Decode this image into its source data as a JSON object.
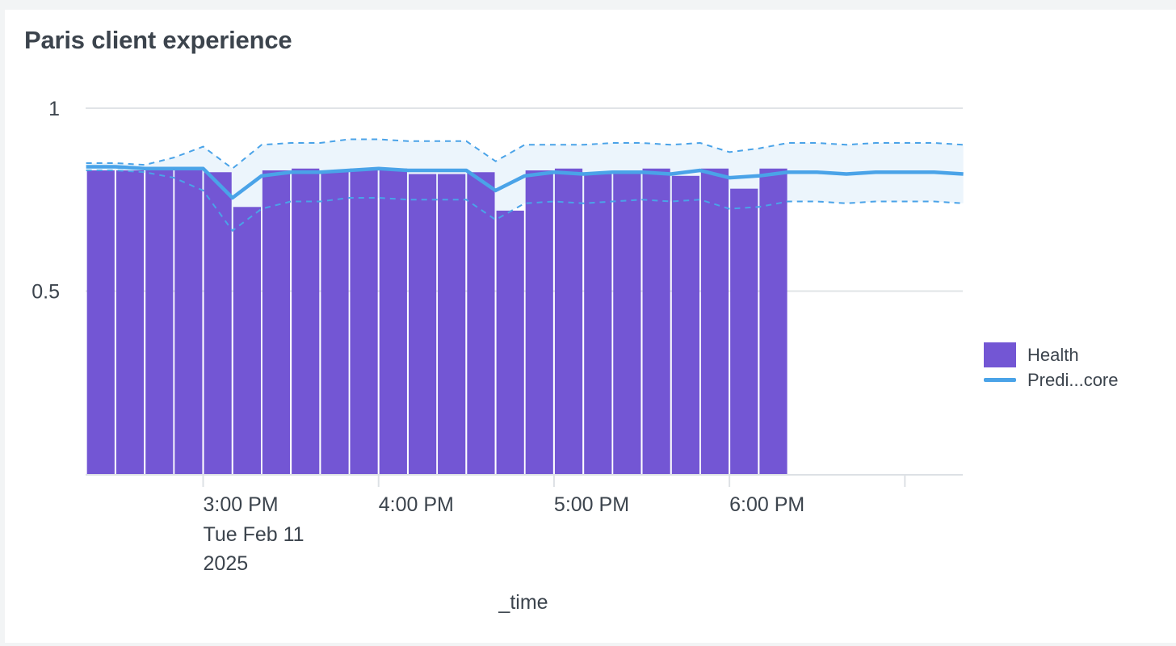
{
  "panel": {
    "title": "Paris client experience"
  },
  "legend": {
    "items": [
      {
        "label": "Health",
        "kind": "bar",
        "color": "#7356d4"
      },
      {
        "label": "Predi...core",
        "kind": "line",
        "color": "#4aa3e8"
      }
    ]
  },
  "chart_data": {
    "type": "bar",
    "title": "Paris client experience",
    "xlabel": "_time",
    "ylabel": "",
    "ylim": [
      0,
      1
    ],
    "y_ticks": [
      {
        "value": 1,
        "label": "1"
      },
      {
        "value": 0.5,
        "label": "0.5"
      }
    ],
    "x_ticks": [
      {
        "hour": 15,
        "label": "3:00 PM",
        "sublabel": [
          "Tue Feb 11",
          "2025"
        ]
      },
      {
        "hour": 16,
        "label": "4:00 PM",
        "sublabel": []
      },
      {
        "hour": 17,
        "label": "5:00 PM",
        "sublabel": []
      },
      {
        "hour": 18,
        "label": "6:00 PM",
        "sublabel": []
      },
      {
        "hour": 19,
        "label": "",
        "sublabel": []
      }
    ],
    "x_range_hours": [
      14.33,
      19.33
    ],
    "grid": true,
    "legend_position": "right",
    "bar_width_hours": 0.1667,
    "series": [
      {
        "name": "Health",
        "type": "bar",
        "color": "#7356d4",
        "x_hours": [
          14.333,
          14.5,
          14.667,
          14.833,
          15.0,
          15.167,
          15.333,
          15.5,
          15.667,
          15.833,
          16.0,
          16.167,
          16.333,
          16.5,
          16.667,
          16.833,
          17.0,
          17.167,
          17.333,
          17.5,
          17.667,
          17.833,
          18.0,
          18.167
        ],
        "values": [
          0.83,
          0.83,
          0.83,
          0.83,
          0.825,
          0.73,
          0.83,
          0.835,
          0.83,
          0.835,
          0.835,
          0.82,
          0.82,
          0.825,
          0.72,
          0.83,
          0.835,
          0.82,
          0.825,
          0.835,
          0.815,
          0.835,
          0.78,
          0.835
        ]
      },
      {
        "name": "Predi...core",
        "type": "line",
        "color": "#4aa3e8",
        "x_hours": [
          14.333,
          14.5,
          14.667,
          14.833,
          15.0,
          15.167,
          15.333,
          15.5,
          15.667,
          15.833,
          16.0,
          16.167,
          16.333,
          16.5,
          16.667,
          16.833,
          17.0,
          17.167,
          17.333,
          17.5,
          17.667,
          17.833,
          18.0,
          18.167,
          18.333,
          18.5,
          18.667,
          18.833,
          19.0,
          19.167,
          19.333
        ],
        "values": [
          0.84,
          0.84,
          0.835,
          0.835,
          0.835,
          0.755,
          0.815,
          0.825,
          0.825,
          0.83,
          0.835,
          0.83,
          0.83,
          0.83,
          0.775,
          0.815,
          0.825,
          0.82,
          0.825,
          0.825,
          0.82,
          0.83,
          0.81,
          0.815,
          0.825,
          0.825,
          0.82,
          0.825,
          0.825,
          0.825,
          0.82
        ],
        "upper": [
          0.85,
          0.85,
          0.845,
          0.865,
          0.895,
          0.835,
          0.9,
          0.905,
          0.905,
          0.915,
          0.915,
          0.91,
          0.91,
          0.91,
          0.855,
          0.9,
          0.9,
          0.9,
          0.905,
          0.905,
          0.9,
          0.905,
          0.88,
          0.89,
          0.905,
          0.905,
          0.9,
          0.905,
          0.905,
          0.905,
          0.9
        ],
        "lower": [
          0.83,
          0.83,
          0.825,
          0.81,
          0.775,
          0.665,
          0.725,
          0.745,
          0.745,
          0.755,
          0.755,
          0.75,
          0.75,
          0.75,
          0.695,
          0.74,
          0.745,
          0.74,
          0.745,
          0.75,
          0.745,
          0.75,
          0.725,
          0.73,
          0.745,
          0.745,
          0.74,
          0.745,
          0.745,
          0.745,
          0.74
        ]
      }
    ]
  }
}
